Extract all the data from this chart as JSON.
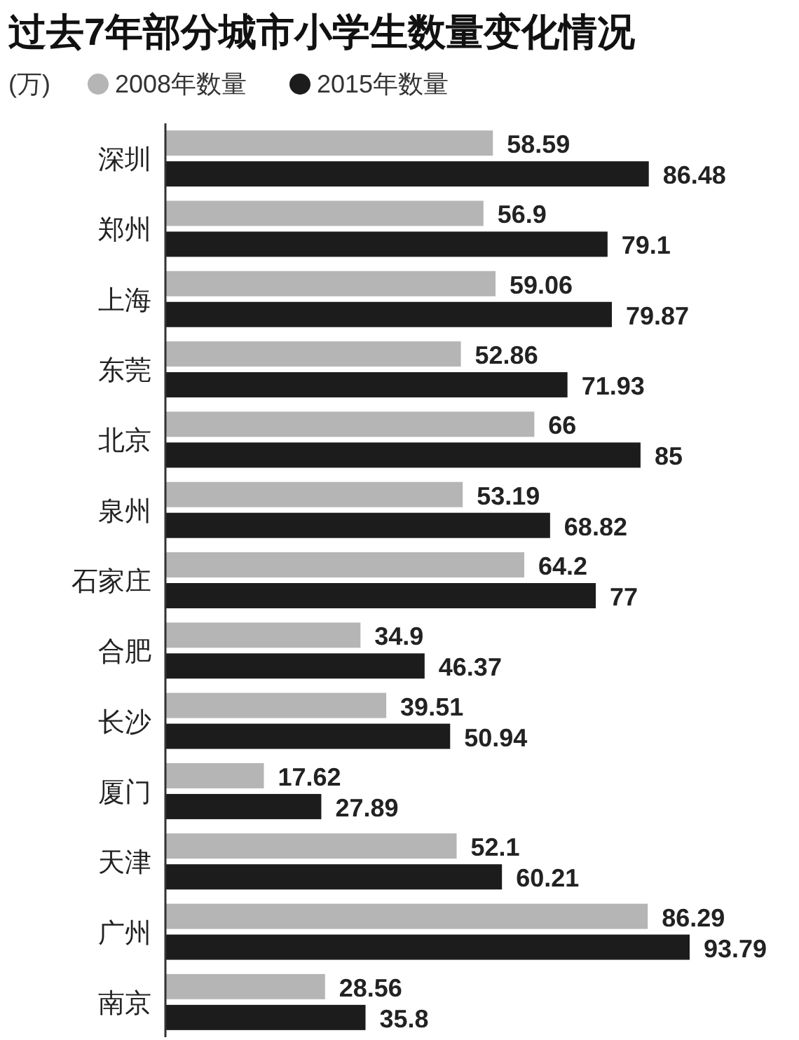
{
  "chart_data": {
    "type": "bar",
    "orientation": "horizontal",
    "title": "过去7年部分城市小学生数量变化情况",
    "legend_title": "(万)",
    "legend": "top",
    "data_labels": true,
    "categories": [
      "深圳",
      "郑州",
      "上海",
      "东莞",
      "北京",
      "泉州",
      "石家庄",
      "合肥",
      "长沙",
      "厦门",
      "天津",
      "广州",
      "南京"
    ],
    "series": [
      {
        "name": "2008年数量",
        "color": "#b5b5b5",
        "values": [
          58.59,
          56.9,
          59.06,
          52.86,
          66,
          53.19,
          64.2,
          34.9,
          39.51,
          17.62,
          52.1,
          86.29,
          28.56
        ]
      },
      {
        "name": "2015年数量",
        "color": "#1c1c1c",
        "values": [
          86.48,
          79.1,
          79.87,
          71.93,
          85,
          68.82,
          77,
          46.37,
          50.94,
          27.89,
          60.21,
          93.79,
          35.8
        ]
      }
    ]
  }
}
